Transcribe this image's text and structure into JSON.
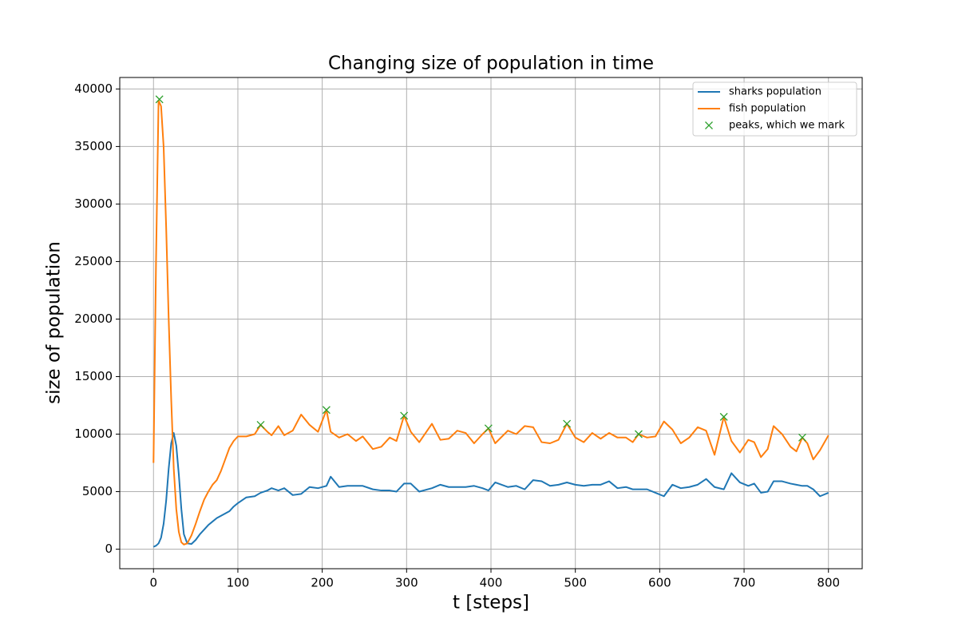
{
  "chart_data": {
    "type": "line",
    "title": "Changing size of population in time",
    "xlabel": "t [steps]",
    "ylabel": "size of population",
    "x": [
      0,
      3,
      6,
      9,
      12,
      15,
      18,
      21,
      24,
      27,
      30,
      33,
      36,
      40,
      45,
      50,
      55,
      60,
      65,
      70,
      75,
      80,
      85,
      90,
      95,
      100,
      110,
      120,
      127,
      135,
      140,
      148,
      155,
      165,
      175,
      185,
      195,
      205,
      210,
      220,
      230,
      240,
      248,
      260,
      270,
      280,
      288,
      297,
      305,
      315,
      330,
      340,
      350,
      360,
      370,
      380,
      390,
      397,
      405,
      420,
      430,
      440,
      450,
      460,
      470,
      480,
      490,
      500,
      510,
      520,
      530,
      540,
      550,
      560,
      568,
      575,
      585,
      595,
      605,
      615,
      625,
      635,
      645,
      655,
      665,
      676,
      685,
      695,
      705,
      712,
      720,
      728,
      735,
      745,
      755,
      762,
      769,
      775,
      782,
      790,
      800
    ],
    "series": [
      {
        "name": "sharks population",
        "color": "#1f77b4",
        "values": [
          200,
          300,
          500,
          1000,
          2200,
          4200,
          7000,
          9200,
          10100,
          9000,
          6500,
          3500,
          1300,
          500,
          450,
          800,
          1300,
          1700,
          2100,
          2400,
          2700,
          2900,
          3100,
          3300,
          3700,
          4000,
          4500,
          4600,
          4900,
          5100,
          5300,
          5100,
          5300,
          4700,
          4800,
          5400,
          5300,
          5500,
          6300,
          5400,
          5500,
          5500,
          5500,
          5200,
          5100,
          5100,
          5000,
          5700,
          5700,
          5000,
          5300,
          5600,
          5400,
          5400,
          5400,
          5500,
          5300,
          5100,
          5800,
          5400,
          5500,
          5200,
          6000,
          5900,
          5500,
          5600,
          5800,
          5600,
          5500,
          5600,
          5600,
          5900,
          5300,
          5400,
          5200,
          5200,
          5200,
          4900,
          4600,
          5600,
          5300,
          5400,
          5600,
          6100,
          5400,
          5200,
          6600,
          5800,
          5500,
          5700,
          4900,
          5000,
          5900,
          5900,
          5700,
          5600,
          5500,
          5500,
          5200,
          4600,
          4900
        ]
      },
      {
        "name": "fish population",
        "color": "#ff7f0e",
        "values": [
          7500,
          25000,
          39000,
          38500,
          35000,
          28000,
          20000,
          13000,
          7000,
          3500,
          1500,
          600,
          400,
          500,
          1200,
          2200,
          3300,
          4300,
          5000,
          5600,
          6000,
          6800,
          7800,
          8800,
          9400,
          9800,
          9800,
          10000,
          10800,
          10200,
          9900,
          10700,
          9900,
          10300,
          11700,
          10800,
          10200,
          12100,
          10200,
          9700,
          10000,
          9400,
          9800,
          8700,
          8900,
          9700,
          9400,
          11600,
          10200,
          9300,
          10900,
          9500,
          9600,
          10300,
          10100,
          9200,
          10000,
          10500,
          9200,
          10300,
          10000,
          10700,
          10600,
          9300,
          9200,
          9500,
          10900,
          9700,
          9300,
          10100,
          9600,
          10100,
          9700,
          9700,
          9300,
          10000,
          9700,
          9800,
          11100,
          10400,
          9200,
          9700,
          10600,
          10300,
          8200,
          11500,
          9400,
          8400,
          9500,
          9300,
          8000,
          8700,
          10700,
          10000,
          8900,
          8500,
          9700,
          9200,
          7800,
          8600,
          9900
        ]
      },
      {
        "name": "peaks, which we mark",
        "color": "#2ca02c",
        "marker": "x",
        "x": [
          7,
          127,
          205,
          297,
          397,
          490,
          575,
          676,
          769
        ],
        "values": [
          39100,
          10800,
          12100,
          11600,
          10500,
          10900,
          10000,
          11500,
          9700
        ]
      }
    ],
    "xlim": [
      -40,
      840
    ],
    "ylim": [
      -1700,
      41000
    ],
    "xticks": [
      0,
      100,
      200,
      300,
      400,
      500,
      600,
      700,
      800
    ],
    "yticks": [
      0,
      5000,
      10000,
      15000,
      20000,
      25000,
      30000,
      35000,
      40000
    ],
    "grid": true,
    "legend": "upper right"
  }
}
